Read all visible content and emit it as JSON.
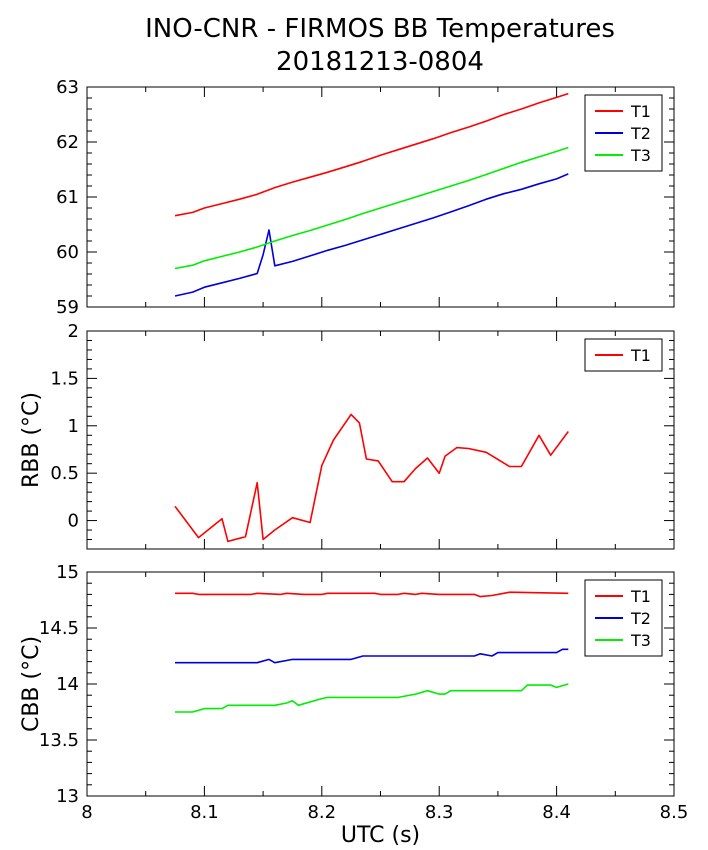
{
  "title_line1": "INO-CNR - FIRMOS BB Temperatures",
  "title_line2": "20181213-0804",
  "colors": {
    "T1": "#ff0000",
    "T2": "#0000dd",
    "T3": "#00ee00"
  },
  "chart_data": [
    {
      "type": "line",
      "xlim": [
        8,
        8.5
      ],
      "ylim": [
        59,
        63
      ],
      "ylabel": "",
      "y_ticks": [
        59,
        60,
        61,
        62,
        63
      ],
      "legend": "top-right",
      "series": [
        {
          "name": "T1",
          "color": "#ff0000",
          "x": [
            8.075,
            8.09,
            8.1,
            8.115,
            8.13,
            8.145,
            8.16,
            8.175,
            8.19,
            8.205,
            8.22,
            8.235,
            8.25,
            8.265,
            8.28,
            8.295,
            8.31,
            8.325,
            8.34,
            8.355,
            8.37,
            8.385,
            8.4,
            8.41
          ],
          "y": [
            60.66,
            60.72,
            60.8,
            60.88,
            60.96,
            61.05,
            61.17,
            61.27,
            61.36,
            61.45,
            61.55,
            61.65,
            61.76,
            61.86,
            61.96,
            62.06,
            62.17,
            62.27,
            62.38,
            62.5,
            62.6,
            62.71,
            62.81,
            62.88
          ]
        },
        {
          "name": "T2",
          "color": "#0000dd",
          "x": [
            8.075,
            8.09,
            8.1,
            8.115,
            8.13,
            8.145,
            8.15,
            8.155,
            8.16,
            8.175,
            8.19,
            8.205,
            8.22,
            8.235,
            8.25,
            8.265,
            8.28,
            8.295,
            8.31,
            8.325,
            8.34,
            8.355,
            8.37,
            8.385,
            8.4,
            8.41
          ],
          "y": [
            59.2,
            59.27,
            59.36,
            59.44,
            59.52,
            59.61,
            59.95,
            60.4,
            59.75,
            59.83,
            59.93,
            60.03,
            60.12,
            60.22,
            60.32,
            60.42,
            60.52,
            60.62,
            60.73,
            60.84,
            60.96,
            61.06,
            61.14,
            61.24,
            61.33,
            61.42
          ]
        },
        {
          "name": "T3",
          "color": "#00ee00",
          "x": [
            8.075,
            8.09,
            8.1,
            8.115,
            8.13,
            8.145,
            8.16,
            8.175,
            8.19,
            8.205,
            8.22,
            8.235,
            8.25,
            8.265,
            8.28,
            8.295,
            8.31,
            8.325,
            8.34,
            8.355,
            8.37,
            8.385,
            8.4,
            8.41
          ],
          "y": [
            59.7,
            59.76,
            59.84,
            59.92,
            60.0,
            60.09,
            60.2,
            60.3,
            60.39,
            60.49,
            60.59,
            60.7,
            60.8,
            60.9,
            61.0,
            61.1,
            61.2,
            61.3,
            61.41,
            61.52,
            61.63,
            61.73,
            61.83,
            61.9
          ]
        }
      ]
    },
    {
      "type": "line",
      "xlim": [
        8,
        8.5
      ],
      "ylim": [
        -0.3,
        2
      ],
      "ylabel": "RBB (°C)",
      "y_ticks": [
        0,
        0.5,
        1,
        1.5,
        2
      ],
      "y_tick_labels": [
        "0",
        "0.5",
        "1",
        "1.5",
        "2"
      ],
      "legend": "top-right",
      "series": [
        {
          "name": "T1",
          "color": "#ff0000",
          "x": [
            8.075,
            8.095,
            8.115,
            8.12,
            8.135,
            8.145,
            8.15,
            8.16,
            8.175,
            8.19,
            8.2,
            8.21,
            8.225,
            8.232,
            8.238,
            8.248,
            8.26,
            8.27,
            8.28,
            8.29,
            8.3,
            8.305,
            8.315,
            8.325,
            8.34,
            8.36,
            8.37,
            8.385,
            8.395,
            8.41
          ],
          "y": [
            0.15,
            -0.18,
            0.02,
            -0.22,
            -0.17,
            0.4,
            -0.2,
            -0.1,
            0.03,
            -0.02,
            0.58,
            0.85,
            1.12,
            1.03,
            0.65,
            0.63,
            0.41,
            0.41,
            0.55,
            0.66,
            0.5,
            0.68,
            0.77,
            0.76,
            0.72,
            0.57,
            0.57,
            0.9,
            0.69,
            0.94
          ]
        }
      ]
    },
    {
      "type": "line",
      "xlim": [
        8,
        8.5
      ],
      "ylim": [
        13,
        15
      ],
      "ylabel": "CBB (°C)",
      "xlabel": "UTC (s)",
      "x_ticks": [
        8,
        8.1,
        8.2,
        8.3,
        8.4,
        8.5
      ],
      "x_tick_labels": [
        "8",
        "8.1",
        "8.2",
        "8.3",
        "8.4",
        "8.5"
      ],
      "y_ticks": [
        13,
        13.5,
        14,
        14.5,
        15
      ],
      "y_tick_labels": [
        "13",
        "13.5",
        "14",
        "14.5",
        "15"
      ],
      "legend": "top-right",
      "series": [
        {
          "name": "T1",
          "color": "#ff0000",
          "x": [
            8.075,
            8.09,
            8.095,
            8.14,
            8.145,
            8.165,
            8.17,
            8.185,
            8.19,
            8.2,
            8.205,
            8.245,
            8.25,
            8.265,
            8.27,
            8.28,
            8.285,
            8.3,
            8.31,
            8.33,
            8.335,
            8.345,
            8.355,
            8.36,
            8.41
          ],
          "y": [
            14.81,
            14.81,
            14.8,
            14.8,
            14.81,
            14.8,
            14.81,
            14.8,
            14.8,
            14.8,
            14.81,
            14.81,
            14.8,
            14.8,
            14.81,
            14.8,
            14.81,
            14.8,
            14.8,
            14.8,
            14.78,
            14.79,
            14.81,
            14.82,
            14.81
          ]
        },
        {
          "name": "T2",
          "color": "#0000dd",
          "x": [
            8.075,
            8.145,
            8.155,
            8.16,
            8.175,
            8.2,
            8.225,
            8.235,
            8.33,
            8.335,
            8.345,
            8.35,
            8.4,
            8.405,
            8.41
          ],
          "y": [
            14.19,
            14.19,
            14.22,
            14.19,
            14.22,
            14.22,
            14.22,
            14.25,
            14.25,
            14.27,
            14.25,
            14.28,
            14.28,
            14.31,
            14.31
          ]
        },
        {
          "name": "T3",
          "color": "#00ee00",
          "x": [
            8.075,
            8.09,
            8.1,
            8.115,
            8.12,
            8.16,
            8.17,
            8.175,
            8.18,
            8.2,
            8.205,
            8.265,
            8.28,
            8.29,
            8.3,
            8.305,
            8.31,
            8.36,
            8.37,
            8.375,
            8.395,
            8.4,
            8.41
          ],
          "y": [
            13.75,
            13.75,
            13.78,
            13.78,
            13.81,
            13.81,
            13.83,
            13.85,
            13.81,
            13.87,
            13.88,
            13.88,
            13.91,
            13.94,
            13.91,
            13.91,
            13.94,
            13.94,
            13.94,
            13.99,
            13.99,
            13.97,
            14.0
          ]
        }
      ]
    }
  ]
}
